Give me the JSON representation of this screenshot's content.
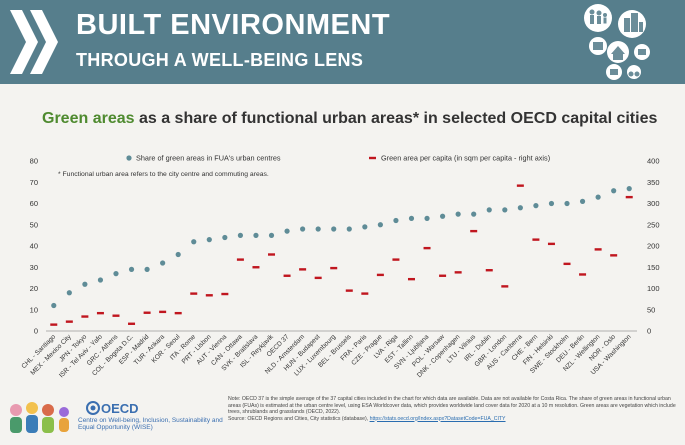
{
  "header": {
    "title": "BUILT ENVIRONMENT",
    "subtitle": "THROUGH A WELL-BEING LENS"
  },
  "chart_title": {
    "green_part": "Green areas",
    "rest": " as a share of functional urban areas* in selected OECD capital cities"
  },
  "chart_data": {
    "type": "scatter",
    "legend": [
      {
        "label": "Share of green areas in FUA's urban centres",
        "color": "#5f8c97",
        "marker": "circle"
      },
      {
        "label": "Green area per capita (in sqm per capita - right axis)",
        "color": "#c0161f",
        "marker": "dash"
      }
    ],
    "note": "* Functional urban area refers to the city centre and commuting areas.",
    "y_left": {
      "min": 0,
      "max": 80,
      "ticks": [
        0,
        10,
        20,
        30,
        40,
        50,
        60,
        70,
        80
      ]
    },
    "y_right": {
      "min": 0,
      "max": 400,
      "ticks": [
        0,
        50,
        100,
        150,
        200,
        250,
        300,
        350,
        400
      ]
    },
    "categories": [
      "CHL - Santiago",
      "MEX - Mexico City",
      "JPN - Tokyo",
      "ISR - Tel Aviv - Yafo",
      "GRC - Athens",
      "COL - Bogota D.C.",
      "ESP - Madrid",
      "TUR - Ankara",
      "KOR - Seoul",
      "ITA - Rome",
      "PRT - Lisbon",
      "AUT - Vienna",
      "CAN - Ottawa",
      "SVK - Bratislava",
      "ISL - Reykjavik",
      "OECD 37",
      "NLD - Amsterdam",
      "HUN - Budapest",
      "LUX - Luxembourg",
      "BEL - Brussels",
      "FRA - Paris",
      "CZE - Prague",
      "LVA - Riga",
      "EST - Tallinn",
      "SVN - Ljubljana",
      "POL - Warsaw",
      "DNK - Copenhagen",
      "LTU - Vilnius",
      "IRL - Dublin",
      "GBR - London",
      "AUS - Canberra",
      "CHE - Bern",
      "FIN - Helsinki",
      "SWE - Stockholm",
      "DEU - Berlin",
      "NZL - Wellington",
      "NOR - Oslo",
      "USA - Washington"
    ],
    "series": [
      {
        "name": "Share of green areas in FUA's urban centres",
        "axis": "left",
        "values": [
          12,
          18,
          22,
          24,
          27,
          29,
          29,
          32,
          36,
          42,
          43,
          44,
          45,
          45,
          45,
          47,
          48,
          48,
          48,
          48,
          49,
          50,
          52,
          53,
          53,
          54,
          55,
          55,
          57,
          57,
          58,
          59,
          60,
          60,
          61,
          63,
          66,
          67
        ]
      },
      {
        "name": "Green area per capita",
        "axis": "right",
        "values": [
          15,
          22,
          34,
          42,
          36,
          17,
          43,
          45,
          42,
          88,
          84,
          87,
          168,
          150,
          180,
          130,
          145,
          125,
          148,
          95,
          88,
          132,
          168,
          122,
          195,
          130,
          138,
          235,
          143,
          105,
          342,
          215,
          205,
          158,
          133,
          192,
          178,
          315
        ]
      }
    ]
  },
  "footer": {
    "note": "Note: OECD 37 is the simple average of the 37 capital cities included in the chart for which data are available. Data are not available for Costa Rica. The share of green areas in functional urban areas (FUAs) is estimated at the urban centre level, using ESA Worldcover data, which provides worldwide land cover data for 2020 at a 10 m resolution. Green areas are vegetation which include trees, shrublands and grasslands (OECD, 2022).",
    "source": "Source: OECD Regions and Cities, City statistics (database), ",
    "link": "https://stats.oecd.org/Index.aspx?DatasetCode=FUA_CITY"
  },
  "oecd": {
    "name": "OECD",
    "centre": "Centre on Well-being, Inclusion, Sustainability and Equal Opportunity (WISE)"
  }
}
